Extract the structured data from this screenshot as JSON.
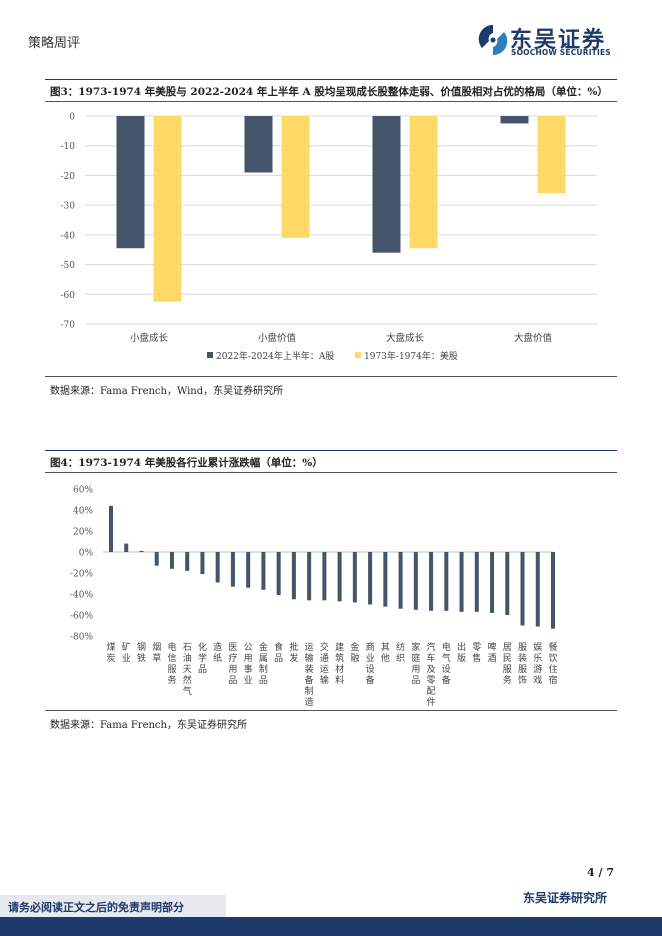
{
  "header": {
    "section_label": "策略周评",
    "logo_cn": "东吴证券",
    "logo_en": "SOOCHOW SECURITIES"
  },
  "figure3": {
    "title": "图3：1973-1974 年美股与 2022-2024 年上半年 A 股均呈现成长股整体走弱、价值股相对占优的格局（单位：%）",
    "source": "数据来源：Fama French，Wind，东吴证券研究所"
  },
  "figure4": {
    "title": "图4：1973-1974 年美股各行业累计涨跌幅（单位：%）",
    "source": "数据来源：Fama French，东吴证券研究所"
  },
  "chart_data": [
    {
      "type": "bar",
      "categories": [
        "小盘成长",
        "小盘价值",
        "大盘成长",
        "大盘价值"
      ],
      "series": [
        {
          "name": "2022年-2024年上半年：A股",
          "values": [
            -44.5,
            -19,
            -46,
            -2.5
          ],
          "color": "#44546a"
        },
        {
          "name": "1973年-1974年：美股",
          "values": [
            -62.5,
            -41,
            -44.5,
            -26
          ],
          "color": "#ffd966"
        }
      ],
      "ylim": [
        -70,
        0
      ],
      "yticks": [
        "0",
        "-10",
        "-20",
        "-30",
        "-40",
        "-50",
        "-60",
        "-70"
      ],
      "ytick_values": [
        0,
        -10,
        -20,
        -30,
        -40,
        -50,
        -60,
        -70
      ],
      "grid": true,
      "legend": "bottom"
    },
    {
      "type": "bar",
      "categories": [
        "煤炭",
        "矿业",
        "钢铁",
        "烟草",
        "电信服务",
        "石油天然气",
        "化学品",
        "造纸",
        "医疗用品",
        "公用事业",
        "金属制品",
        "食品",
        "批发",
        "运输装备制造",
        "交通运输",
        "建筑材料",
        "金融",
        "商业设备",
        "其他",
        "纺织",
        "家庭用品",
        "汽车及零配件",
        "电气设备",
        "出版",
        "零售",
        "啤酒",
        "居民服务",
        "服装服饰",
        "娱乐游戏",
        "餐饮住宿"
      ],
      "values": [
        44,
        8,
        1,
        -13,
        -16,
        -18,
        -21,
        -29,
        -33,
        -34,
        -36,
        -41,
        -45,
        -46,
        -46,
        -47,
        -48,
        -50,
        -52,
        -54,
        -55,
        -56,
        -56,
        -57,
        -57,
        -58,
        -60,
        -70,
        -71,
        -73
      ],
      "color": "#44546a",
      "ylim": [
        -80,
        60
      ],
      "yticks": [
        "60%",
        "40%",
        "20%",
        "0%",
        "-20%",
        "-40%",
        "-60%",
        "-80%"
      ],
      "ytick_values": [
        60,
        40,
        20,
        0,
        -20,
        -40,
        -60,
        -80
      ],
      "grid": false
    }
  ],
  "footer": {
    "page_number": "4 / 7",
    "disclaimer": "请务必阅读正文之后的免责声明部分",
    "institute": "东吴证券研究所"
  }
}
